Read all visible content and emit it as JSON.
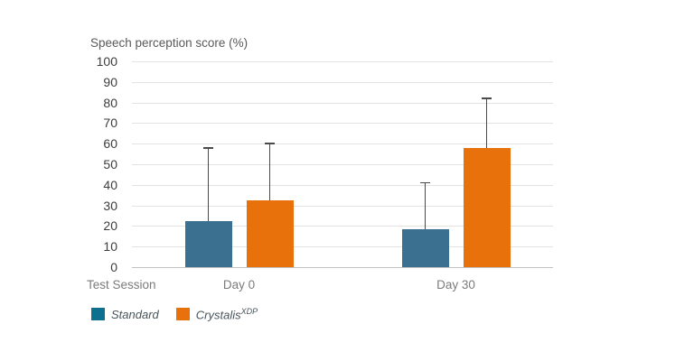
{
  "chart_data": {
    "type": "bar",
    "title": "",
    "ylabel": "Speech perception score (%)",
    "xlabel": "Test Session",
    "categories": [
      "Day 0",
      "Day 30"
    ],
    "series": [
      {
        "name": "Standard",
        "color": "#3c7090",
        "values": [
          22.5,
          18.5
        ],
        "error_upper": [
          58,
          41
        ]
      },
      {
        "name": "Crystalis XDP",
        "color": "#e8710c",
        "values": [
          32.5,
          58
        ],
        "error_upper": [
          60,
          82
        ]
      }
    ],
    "ylim": [
      0,
      100
    ],
    "yticks": [
      0,
      10,
      20,
      30,
      40,
      50,
      60,
      70,
      80,
      90,
      100
    ],
    "grid": true,
    "legend_position": "bottom-left"
  },
  "legend": {
    "items": [
      {
        "label": "Standard",
        "superscript": "",
        "color": "#0d708f"
      },
      {
        "label": "Crystalis",
        "superscript": "XDP",
        "color": "#e8710c"
      }
    ]
  }
}
